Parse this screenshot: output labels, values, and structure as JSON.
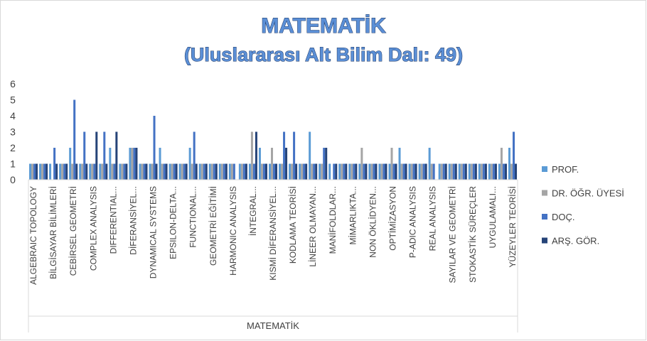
{
  "chart_data": {
    "type": "bar",
    "title": "MATEMATİK",
    "subtitle": "(Uluslararası Alt Bilim Dalı: 49)",
    "xlabel": "MATEMATİK",
    "categories": [
      "ALGEBRAIC TOPOLOGY",
      null,
      "BİLGİSAYAR BİLİMLERİ",
      null,
      "CEBİRSEL GEOMETRİ",
      null,
      "COMPLEX ANALYSIS",
      null,
      "DIFFERENTIAL...",
      null,
      "DİFERANSİYEL...",
      null,
      "DYNAMICAL SYSTEMS",
      null,
      "EPSILON-DELTA...",
      null,
      "FUNCTIONAL...",
      null,
      "GEOMETRİ EĞİTİMİ",
      null,
      "HARMONIC ANALYSIS",
      null,
      "İNTEGRAL...",
      null,
      "KISMİ DİFERANSİYEL...",
      null,
      "KODLAMA TEORİSİ",
      null,
      "LİNEER OLMAYAN...",
      null,
      "MANİFOLDLAR...",
      null,
      "MİMARLIKTA...",
      null,
      "NON ÖKLİDYEN...",
      null,
      "OPTİMİZASYON",
      null,
      "P-ADIC ANALYSIS",
      null,
      "REAL ANALYSIS",
      null,
      "SAYILAR VE GEOMETRİ",
      null,
      "STOKASTİK SÜREÇLER",
      null,
      "UYGULAMALI...",
      null,
      "YÜZEYLER TEORİSİ"
    ],
    "series": [
      {
        "name": "PROF.",
        "color": "#5b9bd5",
        "values": [
          1,
          1,
          1,
          1,
          2,
          1,
          1,
          1,
          2,
          1,
          2,
          1,
          1,
          2,
          1,
          1,
          2,
          1,
          1,
          1,
          1,
          1,
          1,
          2,
          1,
          1,
          1,
          1,
          3,
          1,
          1,
          1,
          1,
          1,
          1,
          1,
          1,
          2,
          1,
          1,
          2,
          1,
          1,
          1,
          1,
          1,
          1,
          1,
          2
        ]
      },
      {
        "name": "DR. ÖĞR. ÜYESİ",
        "color": "#a5a5a5",
        "values": [
          1,
          1,
          0,
          1,
          1,
          1,
          1,
          1,
          1,
          1,
          2,
          1,
          1,
          1,
          1,
          1,
          1,
          1,
          1,
          1,
          1,
          1,
          3,
          1,
          2,
          1,
          1,
          1,
          1,
          1,
          0,
          1,
          1,
          2,
          1,
          1,
          2,
          1,
          1,
          1,
          1,
          1,
          1,
          1,
          1,
          1,
          1,
          2,
          1
        ]
      },
      {
        "name": "DOÇ.",
        "color": "#4472c4",
        "values": [
          1,
          1,
          2,
          1,
          5,
          3,
          1,
          3,
          1,
          1,
          2,
          1,
          4,
          1,
          1,
          1,
          3,
          1,
          1,
          1,
          1,
          1,
          1,
          1,
          1,
          3,
          3,
          1,
          1,
          2,
          1,
          1,
          1,
          1,
          1,
          1,
          1,
          1,
          1,
          1,
          1,
          1,
          1,
          1,
          1,
          1,
          1,
          1,
          3
        ]
      },
      {
        "name": "ARŞ. GÖR.",
        "color": "#264478",
        "values": [
          1,
          1,
          1,
          1,
          1,
          1,
          3,
          1,
          3,
          1,
          2,
          1,
          1,
          1,
          1,
          1,
          1,
          1,
          1,
          1,
          0,
          1,
          3,
          1,
          1,
          2,
          1,
          1,
          1,
          2,
          1,
          1,
          1,
          1,
          1,
          1,
          1,
          1,
          1,
          1,
          0,
          1,
          1,
          1,
          1,
          1,
          1,
          1,
          1
        ]
      }
    ],
    "ylim": [
      0,
      6
    ],
    "yticks": [
      0,
      1,
      2,
      3,
      4,
      5,
      6
    ],
    "grid": false,
    "legend": "right"
  }
}
